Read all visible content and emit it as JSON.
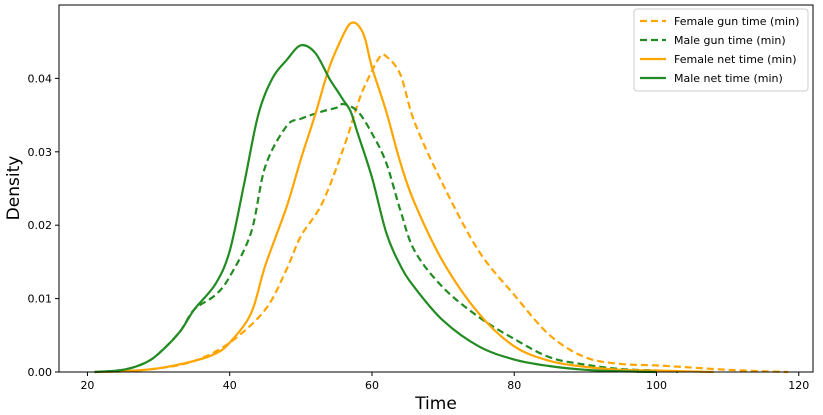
{
  "chart_data": {
    "type": "line",
    "title": "",
    "xlabel": "Time",
    "ylabel": "Density",
    "xlim": [
      16,
      122
    ],
    "ylim": [
      0,
      0.05
    ],
    "x_ticks": [
      20,
      40,
      60,
      80,
      100,
      120
    ],
    "y_ticks": [
      0.0,
      0.01,
      0.02,
      0.03,
      0.04
    ],
    "y_tick_labels": [
      "0.00",
      "0.01",
      "0.02",
      "0.03",
      "0.04"
    ],
    "grid": false,
    "legend_position": "top-right",
    "series": [
      {
        "name": "Female gun time (min)",
        "color": "#FFA500",
        "dash": true,
        "points": [
          [
            21,
            0.0
          ],
          [
            25,
            0.0001
          ],
          [
            30,
            0.0005
          ],
          [
            35,
            0.0015
          ],
          [
            40,
            0.004
          ],
          [
            45,
            0.0085
          ],
          [
            48,
            0.014
          ],
          [
            50,
            0.0185
          ],
          [
            53,
            0.023
          ],
          [
            56,
            0.0305
          ],
          [
            58,
            0.0365
          ],
          [
            59,
            0.039
          ],
          [
            61,
            0.0428
          ],
          [
            62,
            0.043
          ],
          [
            64,
            0.0405
          ],
          [
            66,
            0.034
          ],
          [
            70,
            0.0255
          ],
          [
            75,
            0.0165
          ],
          [
            80,
            0.0105
          ],
          [
            85,
            0.005
          ],
          [
            90,
            0.002
          ],
          [
            95,
            0.0011
          ],
          [
            100,
            0.0009
          ],
          [
            105,
            0.0006
          ],
          [
            110,
            0.0003
          ],
          [
            115,
            0.0001
          ],
          [
            118.5,
            0.0
          ]
        ]
      },
      {
        "name": "Male gun time (min)",
        "color": "#228B22",
        "dash": true,
        "points": [
          [
            21,
            0.0
          ],
          [
            25,
            0.0003
          ],
          [
            28,
            0.0012
          ],
          [
            30,
            0.0025
          ],
          [
            33,
            0.0055
          ],
          [
            35,
            0.0085
          ],
          [
            38,
            0.0105
          ],
          [
            40,
            0.013
          ],
          [
            43,
            0.019
          ],
          [
            45,
            0.028
          ],
          [
            48,
            0.0335
          ],
          [
            50,
            0.0345
          ],
          [
            53,
            0.0355
          ],
          [
            55,
            0.036
          ],
          [
            56,
            0.0365
          ],
          [
            58,
            0.0355
          ],
          [
            60,
            0.0325
          ],
          [
            62,
            0.0285
          ],
          [
            64,
            0.022
          ],
          [
            66,
            0.0165
          ],
          [
            70,
            0.0115
          ],
          [
            75,
            0.0075
          ],
          [
            80,
            0.0045
          ],
          [
            85,
            0.002
          ],
          [
            90,
            0.001
          ],
          [
            95,
            0.0004
          ],
          [
            100,
            0.0002
          ],
          [
            103,
            0.0
          ]
        ]
      },
      {
        "name": "Female net time (min)",
        "color": "#FFA500",
        "dash": false,
        "points": [
          [
            21,
            0.0
          ],
          [
            25,
            0.0001
          ],
          [
            30,
            0.0005
          ],
          [
            35,
            0.0015
          ],
          [
            38,
            0.0025
          ],
          [
            40,
            0.004
          ],
          [
            43,
            0.008
          ],
          [
            45,
            0.0145
          ],
          [
            48,
            0.0225
          ],
          [
            50,
            0.029
          ],
          [
            52,
            0.035
          ],
          [
            54,
            0.0415
          ],
          [
            56,
            0.046
          ],
          [
            57,
            0.0475
          ],
          [
            58,
            0.0473
          ],
          [
            59,
            0.0455
          ],
          [
            60,
            0.0415
          ],
          [
            62,
            0.0355
          ],
          [
            64,
            0.0285
          ],
          [
            66,
            0.023
          ],
          [
            70,
            0.015
          ],
          [
            75,
            0.008
          ],
          [
            80,
            0.0035
          ],
          [
            85,
            0.0015
          ],
          [
            90,
            0.0007
          ],
          [
            95,
            0.0003
          ],
          [
            100,
            0.0002
          ],
          [
            108,
            0.0
          ]
        ]
      },
      {
        "name": "Male net time (min)",
        "color": "#228B22",
        "dash": false,
        "points": [
          [
            21,
            0.0
          ],
          [
            25,
            0.0003
          ],
          [
            28,
            0.0012
          ],
          [
            30,
            0.0025
          ],
          [
            33,
            0.0055
          ],
          [
            35,
            0.0085
          ],
          [
            38,
            0.012
          ],
          [
            40,
            0.0165
          ],
          [
            42,
            0.0255
          ],
          [
            44,
            0.035
          ],
          [
            46,
            0.04
          ],
          [
            48,
            0.0425
          ],
          [
            50,
            0.0445
          ],
          [
            52,
            0.0435
          ],
          [
            54,
            0.04
          ],
          [
            55,
            0.0385
          ],
          [
            56,
            0.037
          ],
          [
            57,
            0.0355
          ],
          [
            58,
            0.0325
          ],
          [
            60,
            0.0265
          ],
          [
            62,
            0.019
          ],
          [
            64,
            0.0145
          ],
          [
            66,
            0.0115
          ],
          [
            70,
            0.007
          ],
          [
            75,
            0.0035
          ],
          [
            80,
            0.0017
          ],
          [
            85,
            0.0008
          ],
          [
            90,
            0.0003
          ],
          [
            95,
            0.0001
          ],
          [
            100,
            0.0
          ]
        ]
      }
    ]
  }
}
